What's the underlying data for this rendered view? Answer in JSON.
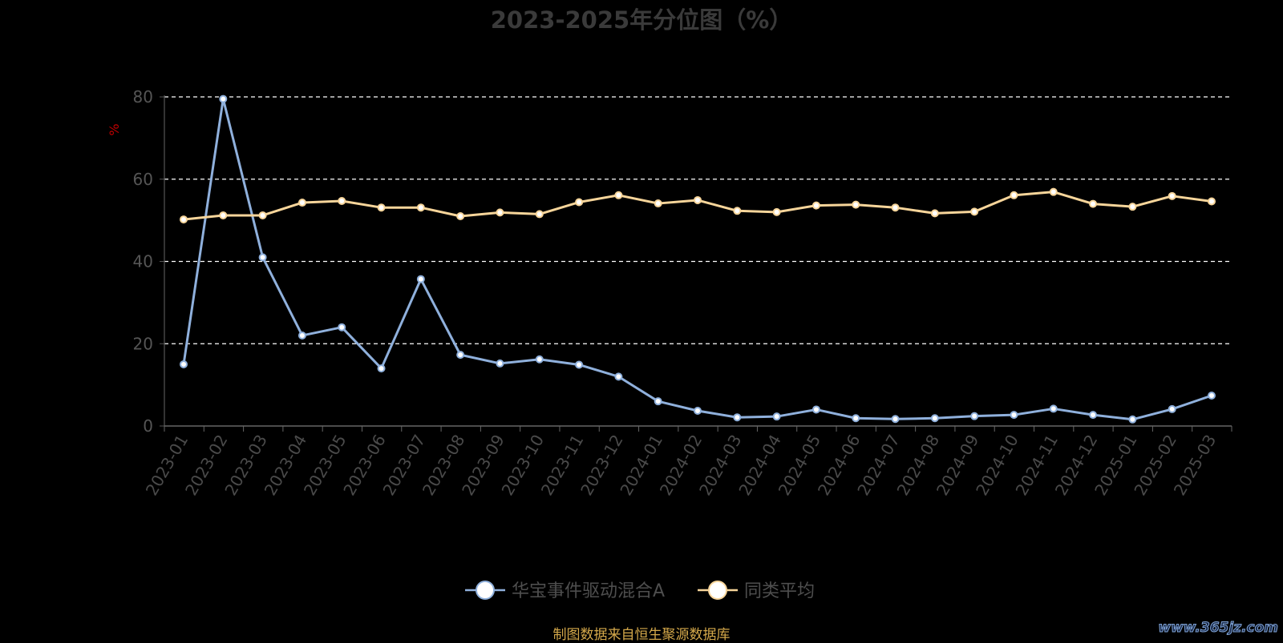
{
  "chart_data": {
    "type": "line",
    "title": "2023-2025年分位图（%）",
    "ylabel": "%",
    "xlabel": "",
    "ylim": [
      0,
      80
    ],
    "yticks": [
      0,
      20,
      40,
      60,
      80
    ],
    "grid": true,
    "legend_position": "bottom",
    "categories": [
      "2023-01",
      "2023-02",
      "2023-03",
      "2023-04",
      "2023-05",
      "2023-06",
      "2023-07",
      "2023-08",
      "2023-09",
      "2023-10",
      "2023-11",
      "2023-12",
      "2024-01",
      "2024-02",
      "2024-03",
      "2024-04",
      "2024-05",
      "2024-06",
      "2024-07",
      "2024-08",
      "2024-09",
      "2024-10",
      "2024-11",
      "2024-12",
      "2025-01",
      "2025-02",
      "2025-03"
    ],
    "series": [
      {
        "name": "华宝事件驱动混合A",
        "color": "#8fb0dc",
        "values": [
          15.0,
          79.5,
          41.0,
          22.0,
          24.0,
          14.0,
          35.7,
          17.3,
          15.2,
          16.2,
          14.9,
          12.0,
          6.0,
          3.7,
          2.1,
          2.3,
          4.0,
          1.9,
          1.7,
          1.9,
          2.4,
          2.7,
          4.2,
          2.7,
          1.6,
          4.1,
          7.4
        ]
      },
      {
        "name": "同类平均",
        "color": "#f7d59a",
        "values": [
          50.2,
          51.2,
          51.2,
          54.3,
          54.7,
          53.1,
          53.1,
          51.0,
          51.9,
          51.5,
          54.4,
          56.1,
          54.1,
          54.9,
          52.3,
          52.0,
          53.6,
          53.8,
          53.1,
          51.7,
          52.1,
          56.1,
          56.9,
          54.0,
          53.3,
          55.9,
          54.6
        ]
      }
    ]
  },
  "footer": {
    "source": "制图数据来自恒生聚源数据库",
    "watermark": "www.365jz.com"
  }
}
